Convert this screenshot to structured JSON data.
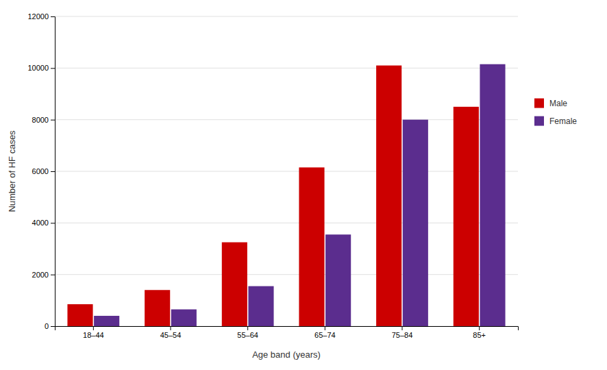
{
  "chart_data": {
    "type": "bar",
    "xlabel": "Age band (years)",
    "ylabel": "Number of HF cases",
    "categories": [
      "18–44",
      "45–54",
      "55–64",
      "65–74",
      "75–84",
      "85+"
    ],
    "series": [
      {
        "name": "Male",
        "color": "#cc0000",
        "values": [
          850,
          1400,
          3250,
          6150,
          10100,
          8500
        ]
      },
      {
        "name": "Female",
        "color": "#5b2d8e",
        "values": [
          400,
          650,
          1550,
          3550,
          8000,
          10150
        ]
      }
    ],
    "ylim": [
      0,
      12000
    ],
    "yticks": [
      0,
      2000,
      4000,
      6000,
      8000,
      10000,
      12000
    ],
    "grid": true,
    "legend": "right"
  }
}
